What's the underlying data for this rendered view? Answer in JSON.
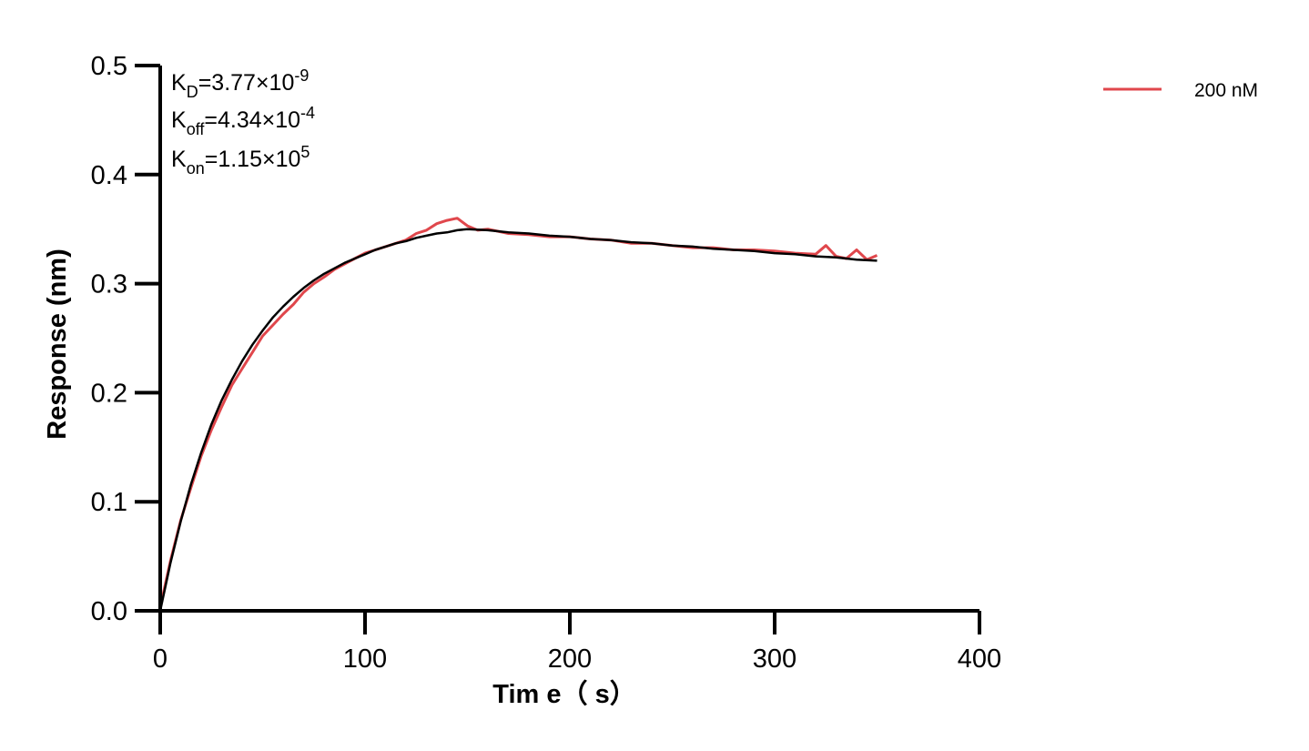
{
  "chart_data": {
    "type": "line",
    "xlabel": "Tim e（ s）",
    "ylabel": "Response (nm)",
    "xlim": [
      0,
      400
    ],
    "ylim": [
      0,
      0.5
    ],
    "x_ticks": [
      "0",
      "100",
      "200",
      "300",
      "400"
    ],
    "y_ticks": [
      "0.0",
      "0.1",
      "0.2",
      "0.3",
      "0.4",
      "0.5"
    ],
    "grid": false,
    "legend_position": "top-right",
    "annotations": {
      "kd": {
        "main": "K",
        "sub": "D",
        "mid": "=3.77×10",
        "sup": "-9"
      },
      "koff": {
        "main": "K",
        "sub": "off",
        "mid": "=4.34×10",
        "sup": "-4"
      },
      "kon": {
        "main": "K",
        "sub": "on",
        "mid": "=1.15×10",
        "sup": "5"
      }
    },
    "series": [
      {
        "name": "200 nM",
        "color": "#e0474c",
        "x": [
          0,
          5,
          10,
          15,
          20,
          25,
          30,
          35,
          40,
          45,
          50,
          55,
          60,
          65,
          70,
          75,
          80,
          85,
          90,
          95,
          100,
          105,
          110,
          115,
          120,
          125,
          130,
          135,
          140,
          145,
          150,
          155,
          160,
          170,
          180,
          190,
          200,
          210,
          220,
          230,
          240,
          250,
          260,
          270,
          280,
          290,
          300,
          310,
          320,
          325,
          330,
          335,
          340,
          345,
          350
        ],
        "y": [
          0.003,
          0.046,
          0.083,
          0.113,
          0.142,
          0.166,
          0.187,
          0.207,
          0.222,
          0.237,
          0.252,
          0.262,
          0.272,
          0.281,
          0.292,
          0.3,
          0.306,
          0.313,
          0.318,
          0.323,
          0.328,
          0.331,
          0.334,
          0.337,
          0.34,
          0.346,
          0.349,
          0.355,
          0.358,
          0.36,
          0.353,
          0.349,
          0.35,
          0.346,
          0.345,
          0.343,
          0.343,
          0.341,
          0.34,
          0.337,
          0.337,
          0.335,
          0.333,
          0.333,
          0.331,
          0.331,
          0.33,
          0.328,
          0.327,
          0.335,
          0.325,
          0.323,
          0.331,
          0.322,
          0.326
        ]
      },
      {
        "name": "",
        "color": "#000000",
        "x": [
          0,
          5,
          10,
          15,
          20,
          25,
          30,
          35,
          40,
          45,
          50,
          55,
          60,
          65,
          70,
          75,
          80,
          85,
          90,
          95,
          100,
          105,
          110,
          115,
          120,
          125,
          130,
          135,
          140,
          145,
          150,
          160,
          170,
          180,
          190,
          200,
          210,
          220,
          230,
          240,
          250,
          260,
          270,
          280,
          290,
          300,
          310,
          320,
          330,
          340,
          350
        ],
        "y": [
          0.0,
          0.044,
          0.082,
          0.116,
          0.145,
          0.171,
          0.193,
          0.212,
          0.229,
          0.244,
          0.257,
          0.269,
          0.279,
          0.288,
          0.296,
          0.303,
          0.309,
          0.314,
          0.319,
          0.323,
          0.327,
          0.331,
          0.334,
          0.337,
          0.339,
          0.342,
          0.344,
          0.346,
          0.347,
          0.349,
          0.35,
          0.349,
          0.347,
          0.346,
          0.344,
          0.343,
          0.341,
          0.34,
          0.338,
          0.337,
          0.335,
          0.334,
          0.332,
          0.331,
          0.33,
          0.328,
          0.327,
          0.325,
          0.324,
          0.322,
          0.321
        ]
      }
    ]
  }
}
